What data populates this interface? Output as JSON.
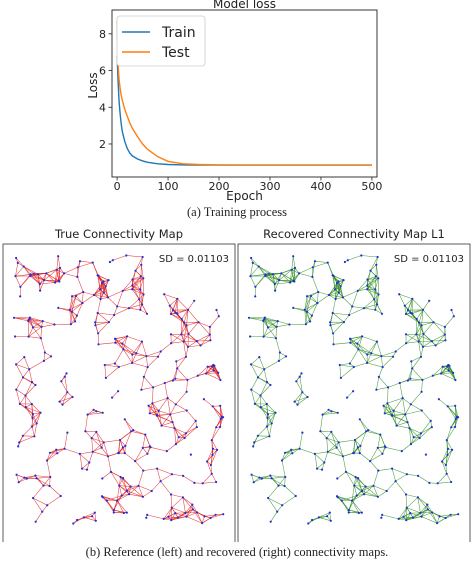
{
  "chart_data": [
    {
      "type": "line",
      "title": "Model loss",
      "xlabel": "Epoch",
      "ylabel": "Loss",
      "xlim": [
        -10,
        510
      ],
      "ylim": [
        0.2,
        9.3
      ],
      "xticks": [
        0,
        100,
        200,
        300,
        400,
        500
      ],
      "yticks": [
        2,
        4,
        6,
        8
      ],
      "legend_position": "top-left",
      "series": [
        {
          "name": "Train",
          "color": "#1f77b4",
          "x": [
            0,
            2,
            4,
            6,
            8,
            10,
            15,
            20,
            25,
            30,
            40,
            50,
            60,
            80,
            100,
            130,
            160,
            200,
            300,
            400,
            500
          ],
          "y": [
            6.8,
            5.4,
            4.3,
            3.6,
            3.1,
            2.7,
            2.15,
            1.75,
            1.5,
            1.35,
            1.18,
            1.08,
            1.0,
            0.92,
            0.88,
            0.86,
            0.85,
            0.85,
            0.85,
            0.85,
            0.85
          ]
        },
        {
          "name": "Test",
          "color": "#ff7f0e",
          "x": [
            0,
            2,
            4,
            6,
            8,
            10,
            15,
            20,
            25,
            30,
            40,
            50,
            60,
            80,
            100,
            130,
            160,
            200,
            300,
            400,
            500
          ],
          "y": [
            8.7,
            6.3,
            5.5,
            5.0,
            4.65,
            4.4,
            3.9,
            3.5,
            3.15,
            2.85,
            2.4,
            2.0,
            1.7,
            1.3,
            1.05,
            0.92,
            0.88,
            0.86,
            0.85,
            0.85,
            0.85
          ]
        }
      ]
    },
    {
      "type": "network",
      "title": "True Connectivity Map",
      "annotation": "SD =  0.01103",
      "edge_color": "#e31a1c",
      "node_color": "#1f2fd6"
    },
    {
      "type": "network",
      "title": "Recovered Connectivity Map L1",
      "annotation": "SD =  0.01103",
      "edge_color": "#2a8a1c",
      "node_color": "#1f2fd6"
    }
  ],
  "captions": {
    "a": "(a) Training process",
    "b": "(b) Reference (left) and recovered (right) connectivity maps."
  }
}
